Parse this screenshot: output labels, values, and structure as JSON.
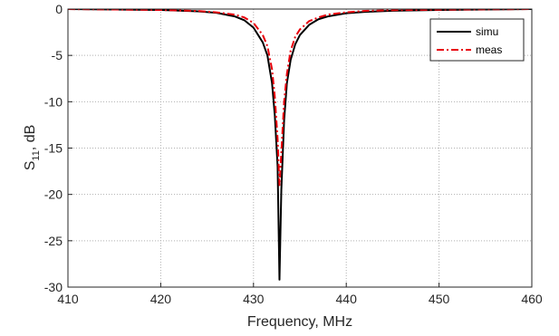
{
  "chart_data": {
    "type": "line",
    "title": "",
    "xlabel": "Frequency, MHz",
    "ylabel_main": "S",
    "ylabel_sub": "11",
    "ylabel_rest": ", dB",
    "xlim": [
      410,
      460
    ],
    "ylim": [
      -30,
      0
    ],
    "xticks": [
      410,
      420,
      430,
      440,
      450,
      460
    ],
    "yticks": [
      0,
      -5,
      -10,
      -15,
      -20,
      -25,
      -30
    ],
    "grid": true,
    "legend_position": "top-right",
    "series": [
      {
        "name": "simu",
        "color": "#000000",
        "style": "solid",
        "x": [
          410,
          420,
          424,
          426,
          428,
          429,
          430,
          431,
          431.5,
          432,
          432.3,
          432.6,
          432.8,
          433,
          433.3,
          433.6,
          434,
          434.5,
          435,
          436,
          437,
          438,
          440,
          442,
          445,
          450,
          460
        ],
        "y": [
          0,
          -0.1,
          -0.25,
          -0.4,
          -0.8,
          -1.2,
          -2.0,
          -3.6,
          -5.0,
          -8.0,
          -11.5,
          -17.0,
          -29.2,
          -19.5,
          -12.0,
          -8.0,
          -5.5,
          -3.8,
          -2.8,
          -1.7,
          -1.1,
          -0.8,
          -0.45,
          -0.3,
          -0.18,
          -0.1,
          0
        ]
      },
      {
        "name": "meas",
        "color": "#e8000b",
        "style": "dash-dot",
        "x": [
          410,
          420,
          424,
          426,
          428,
          429,
          430,
          431,
          431.5,
          432,
          432.3,
          432.6,
          432.8,
          433,
          433.3,
          433.6,
          434,
          434.5,
          435,
          436,
          437,
          438,
          440,
          442,
          445,
          450,
          460
        ],
        "y": [
          0,
          -0.1,
          -0.2,
          -0.35,
          -0.6,
          -0.9,
          -1.5,
          -2.8,
          -4.0,
          -6.5,
          -9.5,
          -14.0,
          -19.0,
          -15.5,
          -10.0,
          -7.0,
          -4.5,
          -3.0,
          -2.2,
          -1.3,
          -0.9,
          -0.6,
          -0.35,
          -0.2,
          -0.12,
          -0.07,
          0
        ]
      }
    ]
  }
}
